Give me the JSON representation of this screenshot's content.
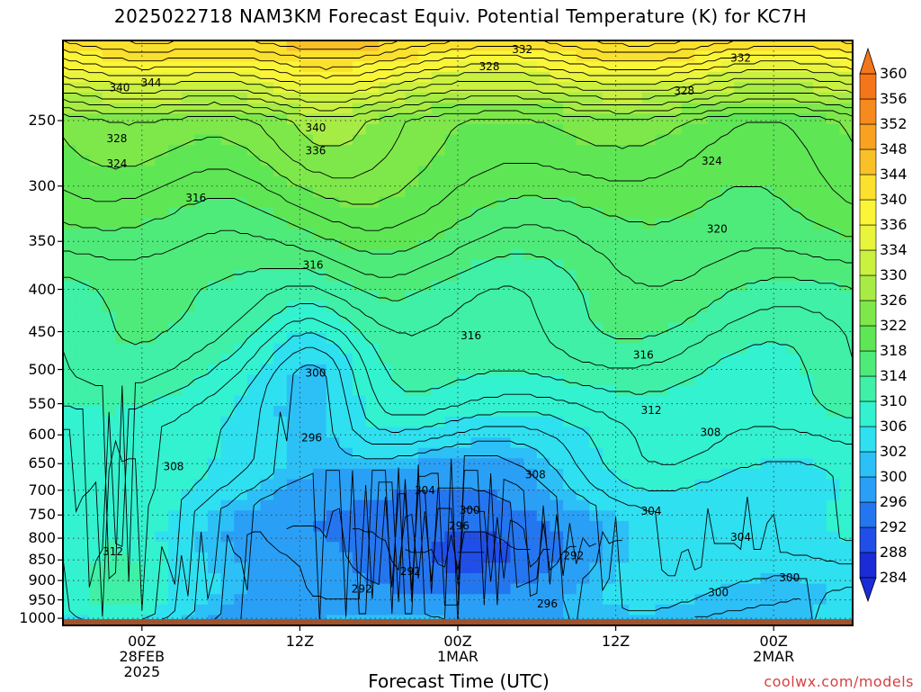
{
  "title": "2025022718 NAM3KM Forecast Equiv. Potential Temperature (K) for KC7H",
  "credit": "coolwx.com/models",
  "chart_data": {
    "type": "heatmap",
    "title": "2025022718 NAM3KM Forecast Equiv. Potential Temperature (K) for KC7H",
    "xlabel": "Forecast Time (UTC)",
    "ylabel": "",
    "x_ticks": [
      {
        "hour": 6,
        "lines": [
          "00Z",
          "28FEB",
          "2025"
        ]
      },
      {
        "hour": 18,
        "lines": [
          "12Z"
        ]
      },
      {
        "hour": 30,
        "lines": [
          "00Z",
          "1MAR"
        ]
      },
      {
        "hour": 42,
        "lines": [
          "12Z"
        ]
      },
      {
        "hour": 54,
        "lines": [
          "00Z",
          "2MAR"
        ]
      }
    ],
    "xlim_hours": [
      0,
      60
    ],
    "y_ticks": [
      250,
      300,
      350,
      400,
      450,
      500,
      550,
      600,
      650,
      700,
      750,
      800,
      850,
      900,
      950,
      1000
    ],
    "ylim": [
      1020,
      200
    ],
    "colorbar_levels": [
      284,
      288,
      292,
      296,
      300,
      302,
      306,
      310,
      314,
      318,
      322,
      326,
      330,
      334,
      336,
      340,
      344,
      348,
      352,
      356,
      360
    ],
    "colorbar_colors": [
      "#1a2cd8",
      "#1f4fe8",
      "#2476f0",
      "#2a9ff6",
      "#2cc0f7",
      "#2fe0f0",
      "#33f2cf",
      "#3ff0a6",
      "#4feb7a",
      "#5ee655",
      "#7ee84a",
      "#a6ec45",
      "#caf040",
      "#e8f53c",
      "#fbf538",
      "#fbe02e",
      "#fac027",
      "#f8a220",
      "#f68a1c",
      "#f57619"
    ],
    "contour_labels": [
      {
        "value": 344,
        "hour": 6.7,
        "p": 225
      },
      {
        "value": 340,
        "hour": 4.3,
        "p": 228
      },
      {
        "value": 332,
        "hour": 34.9,
        "p": 205
      },
      {
        "value": 332,
        "hour": 51.5,
        "p": 210
      },
      {
        "value": 328,
        "hour": 32.4,
        "p": 215
      },
      {
        "value": 328,
        "hour": 47.2,
        "p": 230
      },
      {
        "value": 328,
        "hour": 4.1,
        "p": 263
      },
      {
        "value": 340,
        "hour": 19.2,
        "p": 255
      },
      {
        "value": 336,
        "hour": 19.2,
        "p": 272
      },
      {
        "value": 324,
        "hour": 4.1,
        "p": 282
      },
      {
        "value": 324,
        "hour": 49.3,
        "p": 280
      },
      {
        "value": 316,
        "hour": 10.1,
        "p": 310
      },
      {
        "value": 320,
        "hour": 49.7,
        "p": 338
      },
      {
        "value": 316,
        "hour": 19.0,
        "p": 374
      },
      {
        "value": 316,
        "hour": 31.0,
        "p": 455
      },
      {
        "value": 316,
        "hour": 44.1,
        "p": 480
      },
      {
        "value": 300,
        "hour": 19.2,
        "p": 505
      },
      {
        "value": 312,
        "hour": 44.7,
        "p": 560
      },
      {
        "value": 296,
        "hour": 18.9,
        "p": 605
      },
      {
        "value": 308,
        "hour": 49.2,
        "p": 596
      },
      {
        "value": 308,
        "hour": 8.4,
        "p": 655
      },
      {
        "value": 308,
        "hour": 35.9,
        "p": 670
      },
      {
        "value": 304,
        "hour": 27.5,
        "p": 700
      },
      {
        "value": 300,
        "hour": 30.9,
        "p": 740
      },
      {
        "value": 304,
        "hour": 44.7,
        "p": 742
      },
      {
        "value": 296,
        "hour": 30.1,
        "p": 773
      },
      {
        "value": 304,
        "hour": 51.5,
        "p": 798
      },
      {
        "value": 312,
        "hour": 3.8,
        "p": 830
      },
      {
        "value": 292,
        "hour": 38.8,
        "p": 840
      },
      {
        "value": 292,
        "hour": 26.4,
        "p": 878
      },
      {
        "value": 300,
        "hour": 55.2,
        "p": 893
      },
      {
        "value": 292,
        "hour": 22.7,
        "p": 922
      },
      {
        "value": 300,
        "hour": 49.8,
        "p": 931
      },
      {
        "value": 296,
        "hour": 36.8,
        "p": 960
      }
    ]
  }
}
